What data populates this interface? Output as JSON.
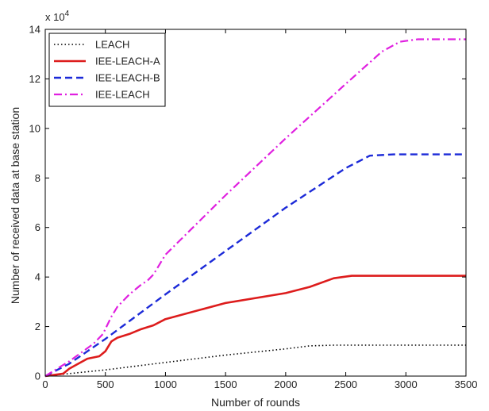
{
  "chart_data": {
    "type": "line",
    "title": "",
    "xlabel": "Number of rounds",
    "ylabel": "Number of received data at base station",
    "y_multiplier_label": "x 10",
    "y_multiplier_exponent": "4",
    "xlim": [
      0,
      3500
    ],
    "ylim": [
      0,
      14
    ],
    "xticks": [
      0,
      500,
      1000,
      1500,
      2000,
      2500,
      3000,
      3500
    ],
    "yticks": [
      0,
      2,
      4,
      6,
      8,
      10,
      12,
      14
    ],
    "grid": false,
    "legend_position": "top-left",
    "series": [
      {
        "name": "LEACH",
        "color": "#000000",
        "dash": "dotted",
        "x": [
          0,
          100,
          500,
          1000,
          1500,
          2000,
          2200,
          2400,
          3000,
          3500
        ],
        "y": [
          0,
          0.05,
          0.25,
          0.55,
          0.85,
          1.1,
          1.22,
          1.25,
          1.25,
          1.25
        ]
      },
      {
        "name": "IEE-LEACH-A",
        "color": "#dd1c1c",
        "dash": "solid",
        "x": [
          0,
          150,
          200,
          350,
          450,
          500,
          550,
          600,
          700,
          800,
          900,
          1000,
          1500,
          2000,
          2200,
          2400,
          2550,
          3000,
          3500
        ],
        "y": [
          0,
          0.1,
          0.3,
          0.7,
          0.8,
          1.0,
          1.4,
          1.55,
          1.7,
          1.9,
          2.05,
          2.3,
          2.95,
          3.35,
          3.6,
          3.95,
          4.05,
          4.05,
          4.05
        ]
      },
      {
        "name": "IEE-LEACH-B",
        "color": "#1c2ad8",
        "dash": "dashed",
        "x": [
          0,
          200,
          500,
          1000,
          1500,
          2000,
          2500,
          2700,
          2900,
          3000,
          3500
        ],
        "y": [
          0,
          0.5,
          1.5,
          3.3,
          5.05,
          6.8,
          8.4,
          8.9,
          8.95,
          8.95,
          8.95
        ]
      },
      {
        "name": "IEE-LEACH",
        "color": "#e020e0",
        "dash": "dashdot",
        "x": [
          0,
          200,
          400,
          480,
          550,
          600,
          700,
          800,
          850,
          900,
          1000,
          1500,
          2000,
          2500,
          2800,
          2950,
          3100,
          3500
        ],
        "y": [
          0,
          0.6,
          1.3,
          1.7,
          2.4,
          2.8,
          3.3,
          3.7,
          3.85,
          4.1,
          4.9,
          7.3,
          9.6,
          11.8,
          13.1,
          13.5,
          13.6,
          13.6
        ]
      }
    ]
  }
}
